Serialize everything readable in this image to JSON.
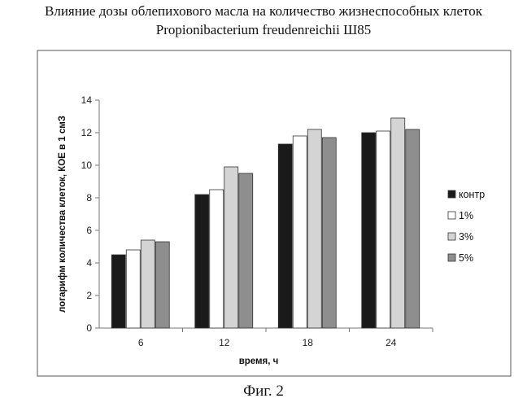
{
  "page": {
    "title_line1": "Влияние дозы облепихового масла на количество жизнеспособных клеток",
    "title_line2": "Propionibacterium freudenreichii Ш85",
    "figure_caption": "Фиг. 2"
  },
  "chart_data": {
    "type": "bar",
    "title": "",
    "xlabel": "время, ч",
    "ylabel": "логарифм количества клеток, КОЕ в 1 смЗ",
    "categories": [
      "6",
      "12",
      "18",
      "24"
    ],
    "ylim": [
      0,
      14
    ],
    "yticks": [
      0,
      2,
      4,
      6,
      8,
      10,
      12,
      14
    ],
    "grid": false,
    "legend_position": "right",
    "series": [
      {
        "name": "контр",
        "values": [
          4.5,
          8.2,
          11.3,
          12.0
        ],
        "color": "#1a1a1a"
      },
      {
        "name": "1%",
        "values": [
          4.8,
          8.5,
          11.8,
          12.1
        ],
        "color": "#ffffff"
      },
      {
        "name": "3%",
        "values": [
          5.4,
          9.9,
          12.2,
          12.9
        ],
        "color": "#d4d4d4"
      },
      {
        "name": "5%",
        "values": [
          5.3,
          9.5,
          11.7,
          12.2
        ],
        "color": "#8e8e8e"
      }
    ]
  }
}
